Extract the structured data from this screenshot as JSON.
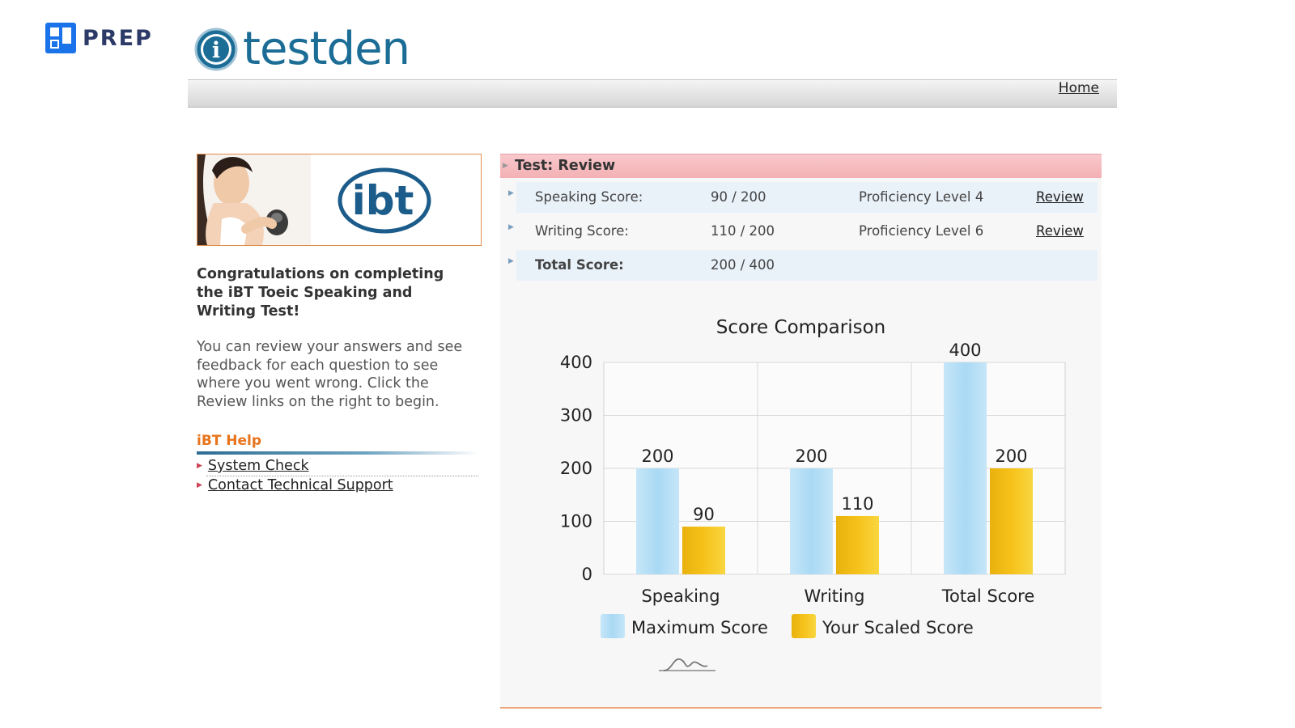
{
  "brand": {
    "name": "PREP"
  },
  "site": {
    "logo_text": "testden",
    "logo_icon_text": "i"
  },
  "nav": {
    "home_label": "Home"
  },
  "banner": {
    "logo_text": "ibt"
  },
  "intro": {
    "heading": "Congratulations on completing the iBT Toeic Speaking and Writing Test!",
    "body": "You can review your answers and see feedback for each question to see where you went wrong. Click the Review links on the right to begin."
  },
  "help": {
    "heading": "iBT Help",
    "links": [
      "System Check",
      "Contact Technical Support"
    ]
  },
  "review": {
    "title": "Test: Review",
    "rows": [
      {
        "label": "Speaking Score:",
        "value": "90 / 200",
        "level": "Proficiency Level 4",
        "link": "Review"
      },
      {
        "label": "Writing Score:",
        "value": "110 / 200",
        "level": "Proficiency Level 6",
        "link": "Review"
      },
      {
        "label": "Total Score:",
        "value": "200 / 400"
      }
    ]
  },
  "colors": {
    "max_bar": "#a9d9f4",
    "scaled_bar": "#f6c21a",
    "accent": "#e8741c",
    "header_pink": "#f3b0b4"
  },
  "chart_data": {
    "type": "bar",
    "title": "Score Comparison",
    "categories": [
      "Speaking",
      "Writing",
      "Total Score"
    ],
    "series": [
      {
        "name": "Maximum Score",
        "values": [
          200,
          200,
          400
        ]
      },
      {
        "name": "Your Scaled Score",
        "values": [
          90,
          110,
          200
        ]
      }
    ],
    "ylim": [
      0,
      400
    ],
    "yticks": [
      0,
      100,
      200,
      300,
      400
    ],
    "legend": "bottom",
    "grid": true
  }
}
